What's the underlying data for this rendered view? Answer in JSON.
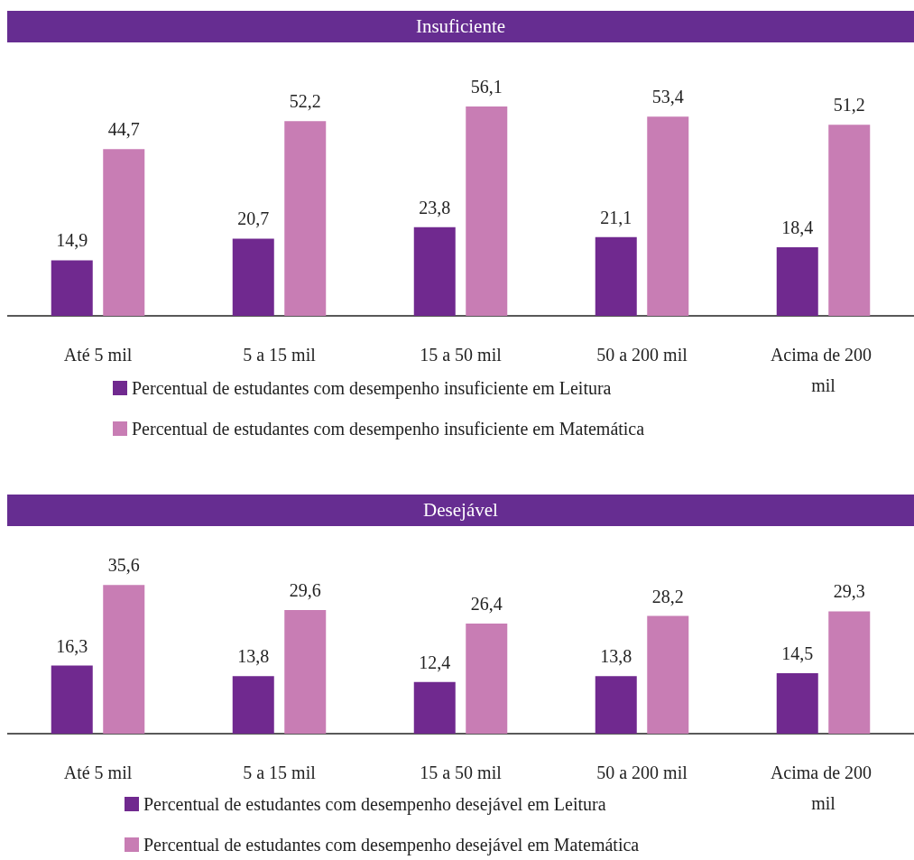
{
  "chart_data": [
    {
      "type": "bar",
      "title": "Insuficiente",
      "categories": [
        "Até 5 mil",
        "5 a 15 mil",
        "15 a 50 mil",
        "50 a 200 mil",
        "Acima de 200 mil"
      ],
      "series": [
        {
          "name": "Percentual de estudantes com desempenho insuficiente em Leitura",
          "color": "#70298f",
          "values": [
            14.9,
            20.7,
            23.8,
            21.1,
            18.4
          ],
          "value_labels": [
            "14,9",
            "20,7",
            "23,8",
            "21,1",
            "18,4"
          ]
        },
        {
          "name": "Percentual de estudantes com desempenho insuficiente em Matemática",
          "color": "#c87db4",
          "values": [
            44.7,
            52.2,
            56.1,
            53.4,
            51.2
          ],
          "value_labels": [
            "44,7",
            "52,2",
            "56,1",
            "53,4",
            "51,2"
          ]
        }
      ],
      "legend": "bottom"
    },
    {
      "type": "bar",
      "title": "Desejável",
      "categories": [
        "Até 5 mil",
        "5 a 15 mil",
        "15 a 50 mil",
        "50 a 200 mil",
        "Acima de 200 mil"
      ],
      "series": [
        {
          "name": "Percentual de estudantes com desempenho desejável em Leitura",
          "color": "#70298f",
          "values": [
            16.3,
            13.8,
            12.4,
            13.8,
            14.5
          ],
          "value_labels": [
            "16,3",
            "13,8",
            "12,4",
            "13,8",
            "14,5"
          ]
        },
        {
          "name": "Percentual de estudantes com desempenho desejável em Matemática",
          "color": "#c87db4",
          "values": [
            35.6,
            29.6,
            26.4,
            28.2,
            29.3
          ],
          "value_labels": [
            "35,6",
            "29,6",
            "26,4",
            "28,2",
            "29,3"
          ]
        }
      ],
      "legend": "bottom"
    }
  ]
}
